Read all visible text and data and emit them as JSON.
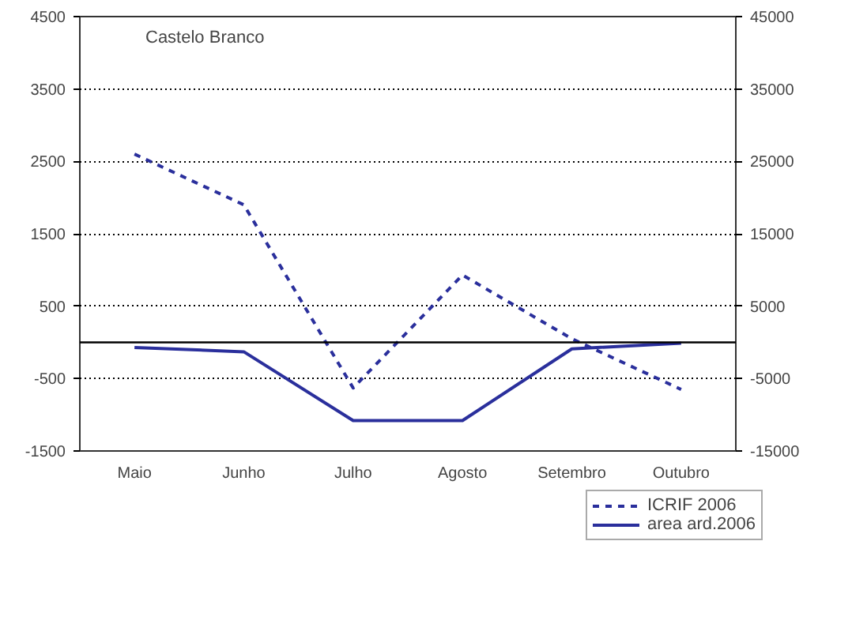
{
  "chart_data": {
    "type": "line",
    "title": "Castelo Branco",
    "categories": [
      "Maio",
      "Junho",
      "Julho",
      "Agosto",
      "Setembro",
      "Outubro"
    ],
    "series": [
      {
        "name": "ICRIF 2006",
        "color": "#2a2f9c",
        "line_style": "dashed",
        "values": [
          2600,
          1900,
          -630,
          930,
          50,
          -650
        ]
      },
      {
        "name": "area ard.2006",
        "color": "#2a2f9c",
        "line_style": "solid",
        "axis": "y2",
        "values": [
          -700,
          -1300,
          -10800,
          -10800,
          -900,
          -100
        ]
      }
    ],
    "ylim": [
      -1500,
      4500
    ],
    "yticks": [
      -1500,
      -500,
      500,
      1500,
      2500,
      3500,
      4500
    ],
    "y2lim": [
      -15000,
      45000
    ],
    "y2ticks": [
      -15000,
      -5000,
      5000,
      15000,
      25000,
      35000,
      45000
    ],
    "ref_lines": [
      {
        "axis": "y",
        "value": 0,
        "color": "#000000"
      }
    ],
    "grid": "y",
    "legend": "bottom right"
  }
}
